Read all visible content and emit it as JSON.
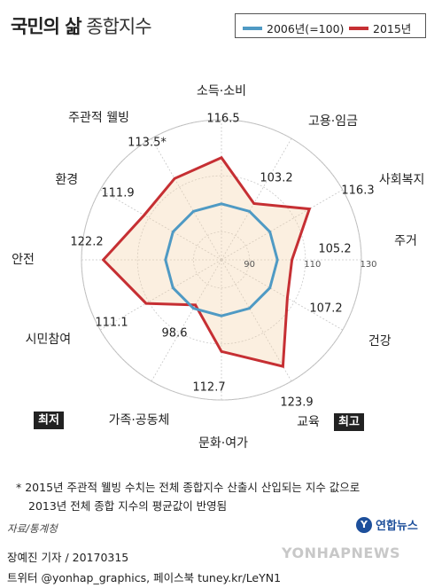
{
  "title": {
    "bold": "국민의 삶",
    "rest": "종합지수"
  },
  "legend": [
    {
      "label": "2006년(=100)",
      "color": "#4f9ac4"
    },
    {
      "label": "2015년",
      "color": "#c62f33"
    }
  ],
  "chart_data": {
    "type": "radar",
    "categories": [
      "소득·소비",
      "고용·임금",
      "사회복지",
      "주거",
      "건강",
      "교육",
      "문화·여가",
      "가족·공동체",
      "시민참여",
      "안전",
      "환경",
      "주관적 웰빙"
    ],
    "series": [
      {
        "name": "2006년(=100)",
        "values": [
          100,
          100,
          100,
          100,
          100,
          100,
          100,
          100,
          100,
          100,
          100,
          100
        ]
      },
      {
        "name": "2015년",
        "values": [
          116.5,
          103.2,
          116.3,
          105.2,
          107.2,
          123.9,
          112.7,
          98.6,
          111.1,
          122.2,
          111.9,
          113.5
        ]
      }
    ],
    "value_labels": [
      "116.5",
      "103.2",
      "116.3",
      "105.2",
      "107.2",
      "123.9",
      "112.7",
      "98.6",
      "111.1",
      "122.2",
      "111.9",
      "113.5*"
    ],
    "radial_ticks": [
      90,
      110,
      130
    ],
    "rlim": [
      80,
      130
    ],
    "badges": {
      "lowest": "최저",
      "highest": "최고"
    }
  },
  "note": {
    "line1": "* 2015년 주관적 웰빙 수치는 전체 종합지수 산출시 산입되는 지수 값으로",
    "line2": "2013년 전체 종합 지수의 평균값이 반영됨"
  },
  "source": "자료/통계청",
  "logo": "연합뉴스",
  "credit": {
    "line1": "장예진 기자 / 20170315",
    "line2": "트위터 @yonhap_graphics, 페이스북 tuney.kr/LeYN1"
  },
  "watermark": "YONHAPNEWS"
}
